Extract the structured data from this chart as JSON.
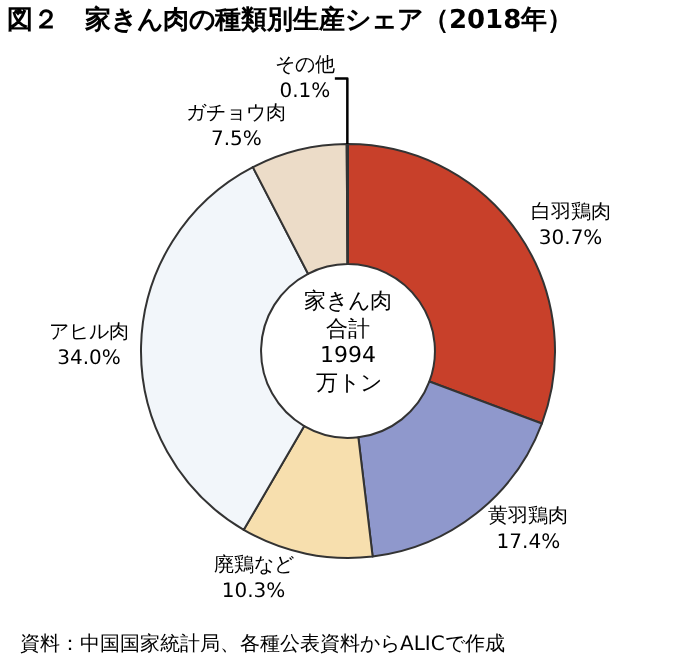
{
  "chart_data": {
    "type": "donut",
    "title": "図２　家きん肉の種類別生産シェア（2018年）",
    "categories": [
      "白羽鶏肉",
      "黄羽鶏肉",
      "廃鶏など",
      "アヒル肉",
      "ガチョウ肉",
      "その他"
    ],
    "values": [
      30.7,
      17.4,
      10.3,
      34.0,
      7.5,
      0.1
    ],
    "colors": [
      "#c8402a",
      "#8f98cc",
      "#f7dfae",
      "#f2f6fa",
      "#ecdcc8",
      "#ffffff"
    ],
    "value_labels": [
      "30.7%",
      "17.4%",
      "10.3%",
      "34.0%",
      "7.5%",
      "0.1%"
    ],
    "annotations": [
      "家きん肉",
      "合計",
      "1994",
      "万トン",
      "資料：中国国家統計局、各種公表資料からALICで作成"
    ],
    "legend": false
  }
}
